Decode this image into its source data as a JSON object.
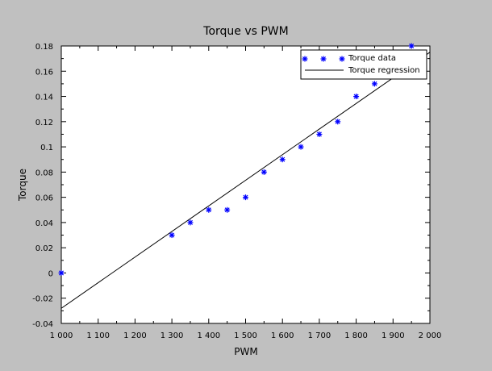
{
  "chart_data": {
    "type": "scatter",
    "title": "Torque vs PWM",
    "xlabel": "PWM",
    "ylabel": "Torque",
    "xlim": [
      1000,
      2000
    ],
    "ylim": [
      -0.04,
      0.18
    ],
    "x_ticks": [
      1000,
      1100,
      1200,
      1300,
      1400,
      1500,
      1600,
      1700,
      1800,
      1900,
      2000
    ],
    "x_tick_labels": [
      "1 000",
      "1 100",
      "1 200",
      "1 300",
      "1 400",
      "1 500",
      "1 600",
      "1 700",
      "1 800",
      "1 900",
      "2 000"
    ],
    "y_ticks": [
      -0.04,
      -0.02,
      0,
      0.02,
      0.04,
      0.06,
      0.08,
      0.1,
      0.12,
      0.14,
      0.16,
      0.18
    ],
    "y_tick_labels": [
      "-0.04",
      "-0.02",
      "0",
      "0.02",
      "0.04",
      "0.06",
      "0.08",
      "0.1",
      "0.12",
      "0.14",
      "0.16",
      "0.18"
    ],
    "grid": false,
    "legend_position": "top-right",
    "series": [
      {
        "name": "Torque data",
        "style": "markers",
        "marker": "*",
        "color": "#0000ff",
        "x": [
          1000,
          1300,
          1350,
          1400,
          1450,
          1500,
          1550,
          1600,
          1650,
          1700,
          1750,
          1800,
          1850,
          1950
        ],
        "y": [
          0,
          0.03,
          0.04,
          0.05,
          0.05,
          0.06,
          0.08,
          0.09,
          0.1,
          0.11,
          0.12,
          0.14,
          0.15,
          0.18
        ]
      },
      {
        "name": "Torque regression",
        "style": "line",
        "color": "#000000",
        "x": [
          1000,
          2000
        ],
        "y": [
          -0.028,
          0.175
        ]
      }
    ]
  }
}
